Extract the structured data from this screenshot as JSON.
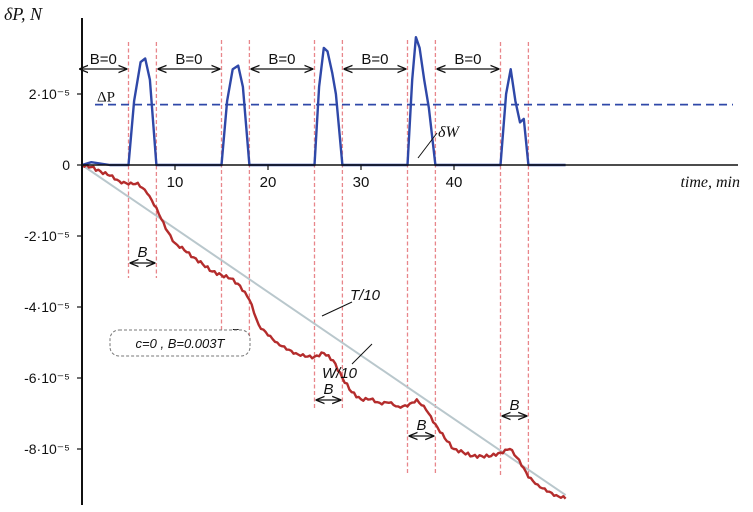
{
  "chart_data": {
    "type": "line",
    "ylabel": "δP, N",
    "xlabel": "time, min",
    "xlim": [
      0,
      52
    ],
    "ylim": [
      -9.3e-05,
      3.6e-05
    ],
    "x_ticks": [
      10,
      20,
      30,
      40
    ],
    "y_ticks": [
      {
        "value": 2e-05,
        "label": "2·10⁻⁵"
      },
      {
        "value": 0,
        "label": "0"
      },
      {
        "value": -2e-05,
        "label": "-2·10⁻⁵"
      },
      {
        "value": -4e-05,
        "label": "-4·10⁻⁵"
      },
      {
        "value": -6e-05,
        "label": "-6·10⁻⁵"
      },
      {
        "value": -8e-05,
        "label": "-8·10⁻⁵"
      }
    ],
    "grid": false,
    "field_on_intervals": [
      [
        5,
        8
      ],
      [
        15,
        18
      ],
      [
        25,
        28
      ],
      [
        35,
        38
      ],
      [
        45,
        48
      ]
    ],
    "field_off_labels": [
      "B=0",
      "B=0",
      "B=0",
      "B=0",
      "B=0"
    ],
    "field_on_label": "B",
    "delta_p_level": 1.7e-05,
    "delta_p_label": "ΔP",
    "annotation_box": "c=0 , B=0.003T",
    "series": [
      {
        "name": "δW",
        "color": "#2f48a8",
        "x": [
          0,
          1,
          3,
          5,
          5.6,
          6.3,
          6.8,
          7.3,
          8,
          15,
          15.6,
          16.2,
          16.8,
          17.3,
          18,
          25,
          25.5,
          26,
          26.4,
          26.9,
          27.3,
          28,
          35,
          35.5,
          35.9,
          36.3,
          36.8,
          37.3,
          38,
          45,
          45.6,
          46.1,
          46.6,
          47.1,
          47.5,
          48,
          52
        ],
        "y": [
          0,
          8e-07,
          0,
          0,
          1.8e-05,
          2.9e-05,
          3e-05,
          2.4e-05,
          0,
          0,
          1.8e-05,
          2.7e-05,
          2.8e-05,
          2.2e-05,
          0,
          0,
          2.2e-05,
          3.3e-05,
          3.2e-05,
          2.6e-05,
          2e-05,
          0,
          0,
          2.4e-05,
          3.6e-05,
          3.3e-05,
          2.4e-05,
          1.6e-05,
          0,
          0,
          2e-05,
          2.7e-05,
          1.8e-05,
          1.2e-05,
          1.3e-05,
          0,
          0
        ]
      },
      {
        "name": "W/10",
        "color": "#b42c2c",
        "x": [
          0,
          1,
          2,
          3,
          4,
          5,
          6,
          7,
          8,
          9,
          10,
          11,
          12,
          13,
          14,
          15,
          16,
          17,
          18,
          19,
          20,
          21,
          22,
          23,
          24,
          25,
          26,
          27,
          28,
          29,
          30,
          31,
          32,
          33,
          34,
          35,
          36,
          37,
          38,
          39,
          40,
          41,
          42,
          43,
          44,
          45,
          46,
          47,
          48,
          49,
          50,
          51,
          52
        ],
        "y": [
          0,
          -6e-07,
          -1.8e-06,
          -3e-06,
          -4.5e-06,
          -5.5e-06,
          -5e-06,
          -8e-06,
          -1.2e-05,
          -1.8e-05,
          -2.2e-05,
          -2.4e-05,
          -2.6e-05,
          -2.8e-05,
          -3e-05,
          -3.1e-05,
          -3.2e-05,
          -3.4e-05,
          -3.8e-05,
          -4.5e-05,
          -4.8e-05,
          -5e-05,
          -5.2e-05,
          -5.3e-05,
          -5.4e-05,
          -5.4e-05,
          -5.3e-05,
          -5.5e-05,
          -6e-05,
          -6.4e-05,
          -6.6e-05,
          -6.6e-05,
          -6.7e-05,
          -6.7e-05,
          -6.8e-05,
          -6.8e-05,
          -6.6e-05,
          -6.9e-05,
          -7.3e-05,
          -7.7e-05,
          -8e-05,
          -8.1e-05,
          -8.2e-05,
          -8.2e-05,
          -8.2e-05,
          -8.1e-05,
          -8e-05,
          -8.3e-05,
          -8.8e-05,
          -9e-05,
          -9.2e-05,
          -9.3e-05,
          -9.4e-05
        ]
      },
      {
        "name": "T/10",
        "color": "#b9c7cc",
        "x": [
          0,
          52
        ],
        "y": [
          0,
          -9.3e-05
        ]
      }
    ]
  }
}
